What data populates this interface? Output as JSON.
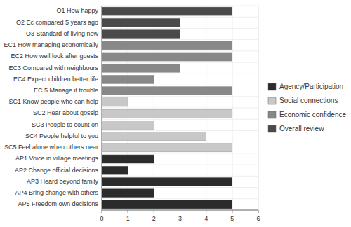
{
  "chart_data": {
    "type": "bar",
    "orientation": "horizontal",
    "categories": [
      "O1 How happy",
      "O2 Ec compared 5 years ago",
      "O3 Standard of living now",
      "EC1 How managing economically",
      "EC2 How well look after guests",
      "EC3 Compared with neighbours",
      "EC4 Expect children better life",
      "EC.5 Manage if trouble",
      "SC1 Know people who can help",
      "SC2 Hear about gossip",
      "SC3 People to count on",
      "SC4 People helpful to you",
      "SC5 Feel alone when others near",
      "AP1 Voice in village meetings",
      "AP2 Change official decisions",
      "AP3 Heard beyond family",
      "AP4 Bring change with others",
      "AP5 Freedom own decisions"
    ],
    "series": [
      {
        "name": "Agency/Participation",
        "color": "#2b2b2b",
        "values": [
          null,
          null,
          null,
          null,
          null,
          null,
          null,
          null,
          null,
          null,
          null,
          null,
          null,
          2,
          1,
          5,
          2,
          5
        ]
      },
      {
        "name": "Social connections",
        "color": "#c8c8c8",
        "values": [
          null,
          null,
          null,
          null,
          null,
          null,
          null,
          null,
          1,
          5,
          2,
          4,
          5,
          null,
          null,
          null,
          null,
          null
        ]
      },
      {
        "name": "Economic confidence",
        "color": "#888888",
        "values": [
          null,
          null,
          null,
          5,
          5,
          3,
          2,
          5,
          null,
          null,
          null,
          null,
          null,
          null,
          null,
          null,
          null,
          null
        ]
      },
      {
        "name": "Overall review",
        "color": "#4a4a4a",
        "values": [
          5,
          3,
          3,
          null,
          null,
          null,
          null,
          null,
          null,
          null,
          null,
          null,
          null,
          null,
          null,
          null,
          null,
          null
        ]
      }
    ],
    "xlim": [
      0,
      6
    ],
    "xticks": [
      0,
      1,
      2,
      3,
      4,
      5,
      6
    ],
    "grid": true,
    "legend": "right"
  }
}
